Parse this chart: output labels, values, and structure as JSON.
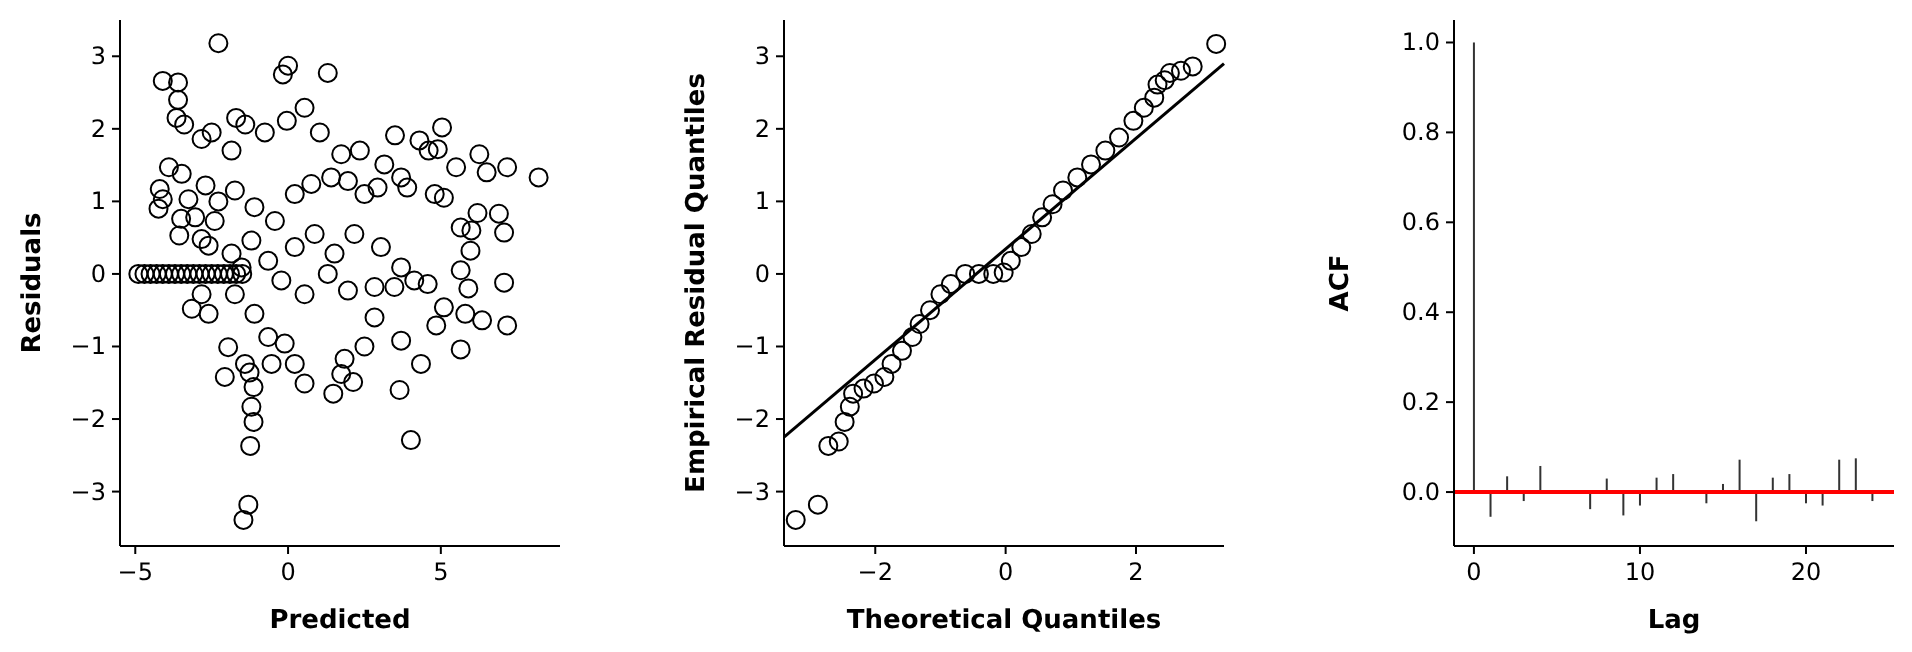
{
  "chart_data": [
    {
      "type": "scatter",
      "xlabel": "Predicted",
      "ylabel": "Residuals",
      "marker": "circle",
      "color": "#000000",
      "xlim": [
        -5.5,
        8.9
      ],
      "ylim": [
        -3.75,
        3.5
      ],
      "xticks": [
        {
          "value": -5,
          "label": "−5"
        },
        0,
        5
      ],
      "yticks": [
        {
          "value": -3,
          "label": "−3"
        },
        {
          "value": -2,
          "label": "−2"
        },
        {
          "value": -1,
          "label": "−1"
        },
        0,
        1,
        2,
        3
      ],
      "x": [
        -4.9,
        -4.7,
        -4.5,
        -4.3,
        -4.1,
        -3.9,
        -3.7,
        -3.5,
        -3.3,
        -3.1,
        -2.9,
        -2.7,
        -2.5,
        -2.3,
        -2.1,
        -1.9,
        -1.7,
        -1.5,
        -2.28,
        -4.1,
        -3.6,
        -3.6,
        -3.65,
        -3.4,
        0,
        -0.17,
        1.3,
        0.54,
        -1.7,
        -1.4,
        -0.04,
        1.04,
        -0.76,
        3.5,
        4.3,
        5.04,
        4.9,
        4.6,
        6.26,
        7.17,
        8.2,
        6.5,
        5.5,
        3.15,
        2.35,
        1.74,
        -2.83,
        -2.5,
        -1.85,
        -3.9,
        -4.2,
        -4.1,
        -4.24,
        -3.48,
        -3.26,
        -3.04,
        -3.5,
        -3.56,
        -2.83,
        -2.6,
        -2.4,
        -2.7,
        -2.28,
        -1.74,
        -1.1,
        -0.43,
        0.22,
        0.76,
        1.41,
        1.96,
        2.5,
        2.93,
        3.7,
        3.9,
        4.8,
        5.1,
        5.65,
        6.2,
        6.0,
        6.9,
        7.07,
        5.97,
        5.65,
        5.9,
        7.07,
        7.17,
        6.35,
        5.8,
        5.1,
        4.85,
        5.65,
        4.35,
        3.65,
        4.02,
        3.7,
        2.83,
        2.5,
        1.85,
        2.13,
        1.48,
        1.74,
        0.54,
        0.22,
        -0.11,
        -0.54,
        -0.65,
        -1.41,
        -1.26,
        -1.13,
        -1.2,
        -1.13,
        -1.24,
        -1.3,
        -1.46,
        -1.96,
        -2.07,
        -2.6,
        -3.15,
        -2.83,
        -1.74,
        -1.1,
        0.54,
        1.3,
        1.96,
        2.83,
        3.48,
        4.13,
        4.57,
        3.7,
        3.04,
        2.17,
        1.52,
        0.87,
        0.22,
        -0.22,
        -0.65,
        -1.2,
        -1.52,
        -1.85
      ],
      "values": [
        0,
        0,
        0,
        0,
        0,
        0,
        0,
        0,
        0,
        0,
        0,
        0,
        0,
        0,
        0,
        0,
        0,
        0,
        3.18,
        2.66,
        2.64,
        2.4,
        2.15,
        2.06,
        2.87,
        2.75,
        2.77,
        2.29,
        2.15,
        2.06,
        2.11,
        1.95,
        1.95,
        1.91,
        1.84,
        2.02,
        1.72,
        1.7,
        1.65,
        1.47,
        1.33,
        1.4,
        1.47,
        1.51,
        1.7,
        1.65,
        1.86,
        1.95,
        1.7,
        1.47,
        1.17,
        1.03,
        0.9,
        1.38,
        1.03,
        0.78,
        0.76,
        0.53,
        0.48,
        0.39,
        0.73,
        1.22,
        1.0,
        1.15,
        0.92,
        0.73,
        1.1,
        1.24,
        1.33,
        1.28,
        1.1,
        1.19,
        1.33,
        1.19,
        1.1,
        1.05,
        0.64,
        0.84,
        0.6,
        0.83,
        0.57,
        0.32,
        0.05,
        -0.2,
        -0.12,
        -0.71,
        -0.64,
        -0.55,
        -0.46,
        -0.71,
        -1.04,
        -1.24,
        -1.6,
        -2.29,
        -0.92,
        -0.6,
        -1.0,
        -1.17,
        -1.49,
        -1.65,
        -1.38,
        -1.51,
        -1.24,
        -0.96,
        -1.24,
        -0.87,
        -1.24,
        -1.36,
        -1.56,
        -1.83,
        -2.04,
        -2.37,
        -3.18,
        -3.39,
        -1.01,
        -1.42,
        -0.55,
        -0.48,
        -0.28,
        -0.28,
        -0.55,
        -0.28,
        0,
        -0.23,
        -0.18,
        -0.18,
        -0.09,
        -0.14,
        0.09,
        0.37,
        0.55,
        0.28,
        0.55,
        0.37,
        -0.09,
        0.18,
        0.46,
        0.09,
        0.28
      ]
    },
    {
      "type": "scatter",
      "xlabel": "Theoretical Quantiles",
      "ylabel": "Empirical Residual Quantiles",
      "xlim": [
        -3.4,
        3.35
      ],
      "ylim": [
        -3.75,
        3.5
      ],
      "xticks": [
        {
          "value": -2,
          "label": "−2"
        },
        0,
        2
      ],
      "yticks": [
        {
          "value": -3,
          "label": "−3"
        },
        {
          "value": -2,
          "label": "−2"
        },
        {
          "value": -1,
          "label": "−1"
        },
        0,
        1,
        2,
        3
      ],
      "series": [
        {
          "marker": "circle",
          "color": "#000000",
          "x": [
            -3.22,
            -2.88,
            -2.72,
            -2.56,
            -2.47,
            -2.39,
            -2.34,
            -2.18,
            -2.02,
            -1.86,
            -1.75,
            -1.59,
            -1.43,
            -1.32,
            -1.16,
            -1.0,
            -0.84,
            -0.62,
            -0.41,
            -0.19,
            -0.03,
            0.08,
            0.24,
            0.4,
            0.56,
            0.72,
            0.88,
            1.1,
            1.31,
            1.53,
            1.74,
            1.96,
            2.12,
            2.28,
            2.33,
            2.44,
            2.52,
            2.69,
            2.87,
            3.23
          ],
          "values": [
            -3.39,
            -3.18,
            -2.37,
            -2.31,
            -2.04,
            -1.83,
            -1.65,
            -1.58,
            -1.51,
            -1.42,
            -1.24,
            -1.06,
            -0.87,
            -0.69,
            -0.5,
            -0.28,
            -0.14,
            0,
            0,
            0,
            0.02,
            0.18,
            0.37,
            0.55,
            0.78,
            0.96,
            1.15,
            1.33,
            1.51,
            1.7,
            1.88,
            2.11,
            2.29,
            2.43,
            2.61,
            2.67,
            2.77,
            2.8,
            2.86,
            3.17
          ]
        },
        {
          "type": "line",
          "color": "#000000",
          "x": [
            -3.4,
            3.35
          ],
          "values": [
            -2.25,
            2.9
          ]
        }
      ]
    },
    {
      "type": "bar",
      "xlabel": "Lag",
      "ylabel": "ACF",
      "color": "#333333",
      "xlim": [
        -1.2,
        25.3
      ],
      "ylim": [
        -0.12,
        1.05
      ],
      "xticks": [
        0,
        10,
        20
      ],
      "yticks": [
        {
          "value": 0,
          "label": "0.0"
        },
        {
          "value": 0.2,
          "label": "0.2"
        },
        {
          "value": 0.4,
          "label": "0.4"
        },
        {
          "value": 0.6,
          "label": "0.6"
        },
        {
          "value": 0.8,
          "label": "0.8"
        },
        {
          "value": 1,
          "label": "1.0"
        }
      ],
      "x": [
        0,
        1,
        2,
        3,
        4,
        5,
        6,
        7,
        8,
        9,
        10,
        11,
        12,
        13,
        14,
        15,
        16,
        17,
        18,
        19,
        20,
        21,
        22,
        23,
        24
      ],
      "values": [
        1.0,
        -0.055,
        0.035,
        -0.02,
        0.058,
        null,
        null,
        -0.038,
        0.03,
        -0.052,
        -0.03,
        0.032,
        0.04,
        null,
        -0.025,
        0.018,
        0.072,
        -0.065,
        0.032,
        0.04,
        -0.025,
        -0.03,
        0.072,
        0.075,
        -0.02
      ],
      "ref_lines": [
        {
          "axis": "y",
          "value": 0,
          "color": "#ff0000"
        }
      ]
    }
  ]
}
